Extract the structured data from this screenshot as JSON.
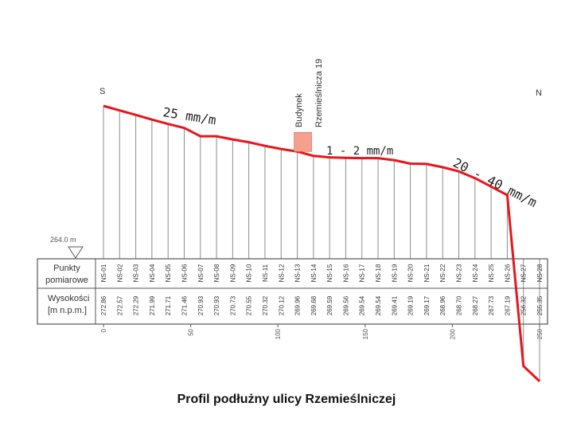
{
  "chart_data": {
    "type": "line",
    "title": "Profil podłużny ulicy Rzemieślniczej",
    "direction_start": "S",
    "direction_end": "N",
    "reference_level": "264.0 m",
    "row_labels": {
      "points": [
        "Punkty",
        "pomiarowe"
      ],
      "heights": [
        "Wysokości",
        "[m n.p.m.]"
      ]
    },
    "points": [
      "NS-01",
      "NS-02",
      "NS-03",
      "NS-04",
      "NS-05",
      "NS-06",
      "NS-07",
      "NS-08",
      "NS-09",
      "NS-10",
      "NS-11",
      "NS-12",
      "NS-13",
      "NS-14",
      "NS-15",
      "NS-16",
      "NS-17",
      "NS-18",
      "NS-19",
      "NS-20",
      "NS-21",
      "NS-22",
      "NS-23",
      "NS-24",
      "NS-25",
      "NS-26",
      "NS-27",
      "NS-28"
    ],
    "heights": [
      "272.86",
      "272.57",
      "272.29",
      "271.99",
      "271.71",
      "271.46",
      "270.93",
      "270.93",
      "270.73",
      "270.55",
      "270.32",
      "270.12",
      "269.96",
      "269.68",
      "269.59",
      "269.56",
      "269.54",
      "269.54",
      "269.41",
      "269.19",
      "269.17",
      "268.96",
      "268.70",
      "268.27",
      "267.73",
      "267.19",
      "256.32",
      "255.35"
    ],
    "distance_ticks": [
      "0",
      "50",
      "100",
      "150",
      "200",
      "250"
    ],
    "slope_labels": [
      "25 mm/m",
      "1 - 2 mm/m",
      "20 - 40 mm/m"
    ],
    "building": {
      "label1": "Budynek",
      "label2": "Rzemieślnicza 19",
      "color": "#f4a08c"
    },
    "line_color": "#e8151c",
    "grid": true
  }
}
